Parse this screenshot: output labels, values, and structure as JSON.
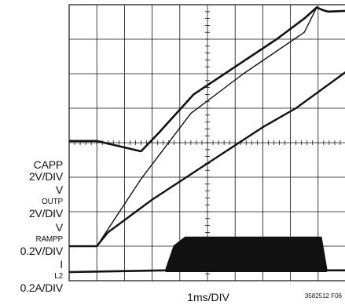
{
  "chart_data": {
    "type": "line",
    "title": "",
    "xlabel": "1ms/DIV",
    "x_range_ms": [
      0,
      10
    ],
    "grid": true,
    "grid_divisions": {
      "x": 10,
      "y": 8
    },
    "channels": [
      {
        "name_main": "CAPP",
        "name_sub": "",
        "scale": "2V/DIV",
        "x": [
          0,
          1,
          2.6,
          3.2,
          4.5,
          6.0,
          7.5,
          8.5,
          8.95,
          9.15,
          9.35,
          10
        ],
        "y": [
          4.05,
          4.05,
          3.75,
          4.25,
          5.4,
          6.2,
          7.0,
          7.6,
          7.92,
          7.85,
          7.8,
          7.82
        ]
      },
      {
        "name_main": "V",
        "name_sub": "OUTP",
        "scale": "2V/DIV",
        "x": [
          0,
          1,
          2.6,
          4.4,
          6.3,
          8.5,
          8.95,
          9.15,
          9.35,
          10
        ],
        "y": [
          1.0,
          1.0,
          2.95,
          4.85,
          6.0,
          7.2,
          7.92,
          7.85,
          7.8,
          7.82
        ]
      },
      {
        "name_main": "V",
        "name_sub": "RAMPP",
        "scale": "0.2V/DIV",
        "x": [
          0,
          1,
          1.4,
          3,
          5,
          7,
          8.2,
          10
        ],
        "y": [
          1.0,
          1.0,
          1.4,
          2.35,
          3.4,
          4.45,
          5.0,
          6.05
        ]
      },
      {
        "name_main": "I",
        "name_sub": "L2",
        "scale": "0.2A/DIV",
        "x": [
          0,
          3.5,
          3.5,
          3.8,
          4.2,
          9.1,
          9.3,
          10
        ],
        "y": [
          0.25,
          0.3,
          0.3,
          1.0,
          1.25,
          1.25,
          0.3,
          0.3
        ],
        "switching_ripple": {
          "from_ms": 3.5,
          "to_ms": 9.3
        }
      }
    ]
  },
  "figure_id": "3582512 F06"
}
